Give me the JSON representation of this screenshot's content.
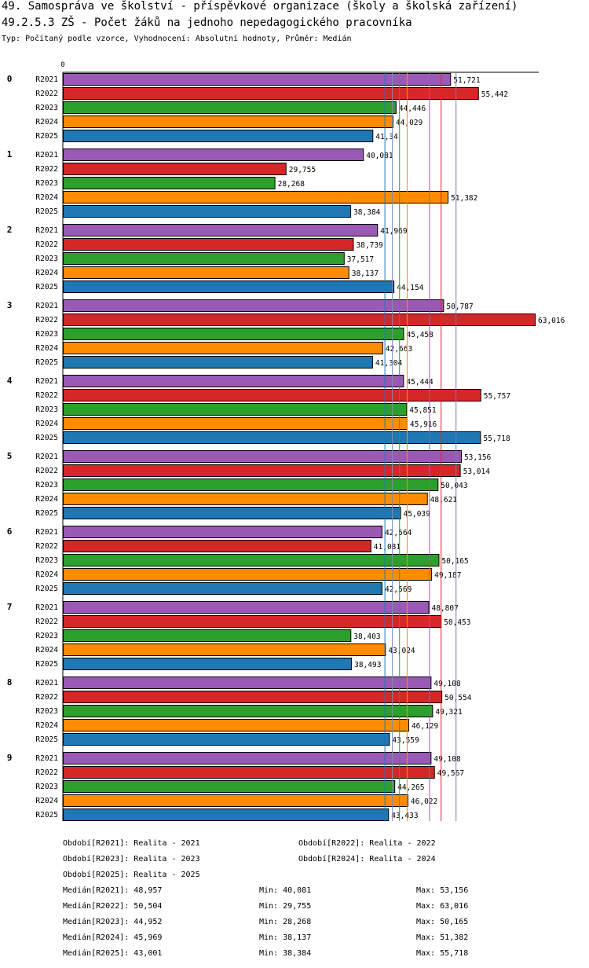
{
  "header": {
    "title": "49. Samospráva ve školství - příspěvkové organizace (školy a školská zařízení)",
    "subtitle": "49.2.5.3 ZŠ - Počet žáků na jednoho nepedagogického pracovníka",
    "meta": "Typ: Počítaný podle vzorce, Vyhodnocení: Absolutní hodnoty, Průměr: Medián"
  },
  "chart_data": {
    "type": "bar",
    "orientation": "horizontal",
    "axis_zero_label": "0",
    "xlim": [
      0,
      63.016
    ],
    "groups": [
      "0",
      "1",
      "2",
      "3",
      "4",
      "5",
      "6",
      "7",
      "8",
      "9"
    ],
    "series": [
      {
        "name": "R2021",
        "color": "#9b59b6",
        "values": [
          51.721,
          40.081,
          41.969,
          50.787,
          45.444,
          53.156,
          42.564,
          48.807,
          49.108,
          49.108
        ],
        "labels": [
          "51,721",
          "40,081",
          "41,969",
          "50,787",
          "45,444",
          "53,156",
          "42,564",
          "48,807",
          "49,108",
          "49,108"
        ]
      },
      {
        "name": "R2022",
        "color": "#d62728",
        "values": [
          55.442,
          29.755,
          38.739,
          63.016,
          55.757,
          53.014,
          41.081,
          50.453,
          50.554,
          49.567
        ],
        "labels": [
          "55,442",
          "29,755",
          "38,739",
          "63,016",
          "55,757",
          "53,014",
          "41,081",
          "50,453",
          "50,554",
          "49,567"
        ]
      },
      {
        "name": "R2023",
        "color": "#2ca02c",
        "values": [
          44.446,
          28.268,
          37.517,
          45.458,
          45.851,
          50.043,
          50.165,
          38.403,
          49.321,
          44.265
        ],
        "labels": [
          "44,446",
          "28,268",
          "37,517",
          "45,458",
          "45,851",
          "50,043",
          "50,165",
          "38,403",
          "49,321",
          "44,265"
        ]
      },
      {
        "name": "R2024",
        "color": "#ff8c00",
        "values": [
          44.029,
          51.382,
          38.137,
          42.663,
          45.916,
          48.621,
          49.187,
          43.024,
          46.129,
          46.022
        ],
        "labels": [
          "44,029",
          "51,382",
          "38,137",
          "42,663",
          "45,916",
          "48,621",
          "49,187",
          "43,024",
          "46,129",
          "46,022"
        ]
      },
      {
        "name": "R2025",
        "color": "#1f77b4",
        "values": [
          41.34,
          38.384,
          44.154,
          41.304,
          55.718,
          45.039,
          42.569,
          38.493,
          43.559,
          43.433
        ],
        "labels": [
          "41,34",
          "38,384",
          "44,154",
          "41,304",
          "55,718",
          "45,039",
          "42,569",
          "38,493",
          "43,559",
          "43,433"
        ]
      }
    ],
    "reference_lines": [
      {
        "name": "R2021",
        "value": 48.957,
        "color": "#9b59b6"
      },
      {
        "name": "R2022",
        "value": 50.504,
        "color": "#d62728"
      },
      {
        "name": "R2023",
        "value": 44.952,
        "color": "#2ca02c"
      },
      {
        "name": "R2024",
        "value": 45.969,
        "color": "#ff8c00"
      },
      {
        "name": "R2025",
        "value": 43.001,
        "color": "#1f77b4"
      },
      {
        "name": "min-a",
        "value": 44.0,
        "color": "#8888aa"
      },
      {
        "name": "min-b",
        "value": 52.5,
        "color": "#7777aa"
      }
    ]
  },
  "legend": [
    "Období[R2021]: Realita - 2021",
    "Období[R2022]: Realita - 2022",
    "Období[R2023]: Realita - 2023",
    "Období[R2024]: Realita - 2024",
    "Období[R2025]: Realita - 2025"
  ],
  "stats": [
    {
      "median": "Medián[R2021]: 48,957",
      "min": "Min: 40,081",
      "max": "Max: 53,156"
    },
    {
      "median": "Medián[R2022]: 50,504",
      "min": "Min: 29,755",
      "max": "Max: 63,016"
    },
    {
      "median": "Medián[R2023]: 44,952",
      "min": "Min: 28,268",
      "max": "Max: 50,165"
    },
    {
      "median": "Medián[R2024]: 45,969",
      "min": "Min: 38,137",
      "max": "Max: 51,382"
    },
    {
      "median": "Medián[R2025]: 43,001",
      "min": "Min: 38,384",
      "max": "Max: 55,718"
    }
  ]
}
